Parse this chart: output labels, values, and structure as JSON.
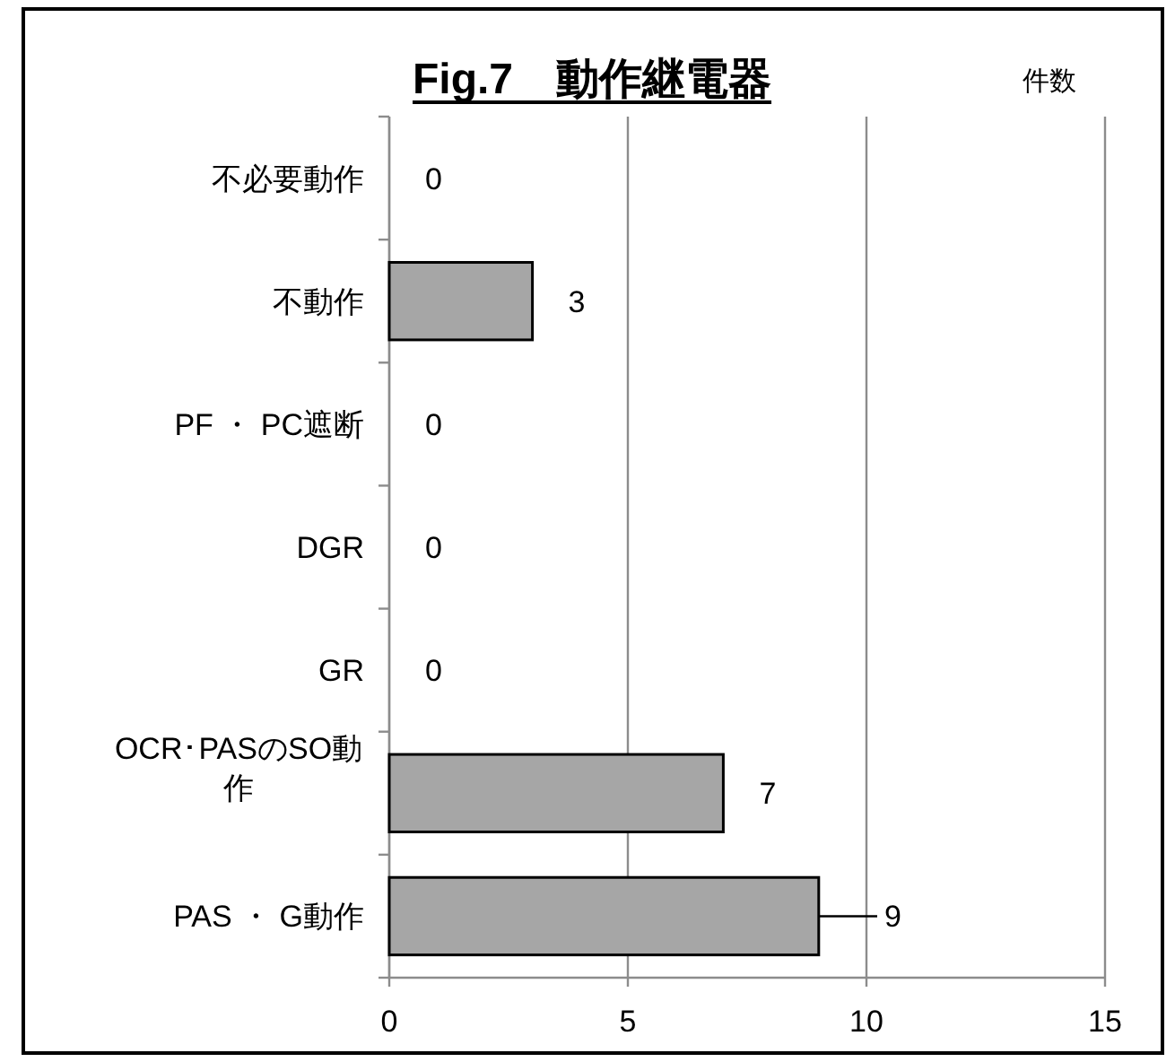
{
  "chart_data": {
    "type": "bar",
    "orientation": "horizontal",
    "title": "Fig.7　動作継電器",
    "xlabel": "件数",
    "categories": [
      "不必要動作",
      "不動作",
      "PF ・ PC遮断",
      "DGR",
      "GR",
      "OCR･PASのSO動作",
      "PAS ・ G動作"
    ],
    "values": [
      0,
      3,
      0,
      0,
      0,
      7,
      9
    ],
    "color": "#a6a6a6",
    "xlim": [
      0,
      15
    ],
    "xticks": [
      0,
      5,
      10,
      15
    ],
    "grid": "x",
    "data_labels": true
  }
}
